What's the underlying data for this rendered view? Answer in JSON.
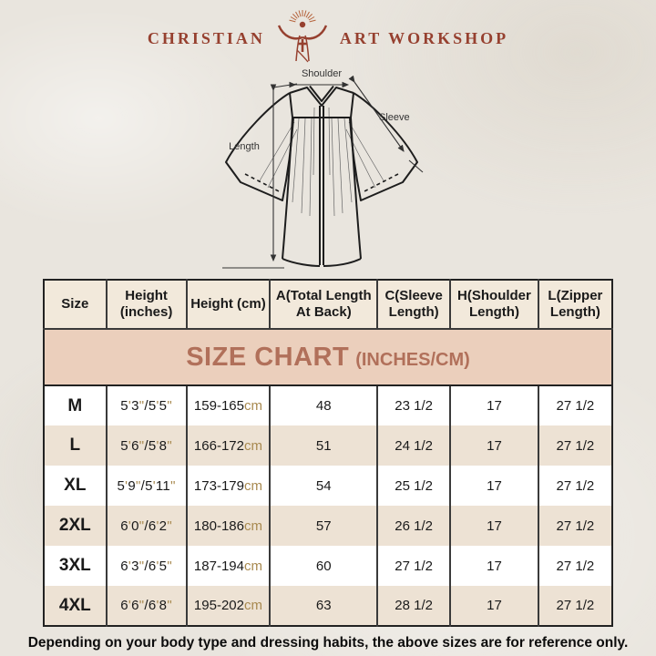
{
  "theme": {
    "page-bg": "#e9e5de",
    "maroon": "#96402f",
    "ray-color": "#b5633c",
    "banner-bg": "#ebcfbc",
    "banner-text": "#b1705a",
    "header-bg": "#f2e9db",
    "alt-row-bg": "#ede2d4",
    "accent": "#a8894f",
    "table-border": "#222222",
    "ink": "#1a1a1a"
  },
  "logo": {
    "left_text": "CHRISTIAN",
    "right_text": "ART WORKSHOP",
    "icon": "christ-with-rays-icon"
  },
  "diagram": {
    "labels": {
      "shoulder": "Shoulder",
      "sleeve": "Sleeve",
      "length": "Length"
    }
  },
  "size_chart": {
    "title": "SIZE CHART",
    "title_suffix": "(INCHES/CM)",
    "unit_cm": "cm",
    "columns": [
      "Size",
      "Height (inches)",
      "Height (cm)",
      "A(Total Length At Back)",
      "C(Sleeve Length)",
      "H(Shoulder Length)",
      "L(Zipper Length)"
    ],
    "rows": [
      {
        "size": "M",
        "height_in": "5'3\"/5'5\"",
        "height_cm": "159-165",
        "total_length": "48",
        "sleeve": "23 1/2",
        "shoulder": "17",
        "zipper": "27 1/2"
      },
      {
        "size": "L",
        "height_in": "5'6\"/5'8\"",
        "height_cm": "166-172",
        "total_length": "51",
        "sleeve": "24 1/2",
        "shoulder": "17",
        "zipper": "27 1/2"
      },
      {
        "size": "XL",
        "height_in": "5'9\"/5'11\"",
        "height_cm": "173-179",
        "total_length": "54",
        "sleeve": "25 1/2",
        "shoulder": "17",
        "zipper": "27 1/2"
      },
      {
        "size": "2XL",
        "height_in": "6'0\"/6'2\"",
        "height_cm": "180-186",
        "total_length": "57",
        "sleeve": "26 1/2",
        "shoulder": "17",
        "zipper": "27 1/2"
      },
      {
        "size": "3XL",
        "height_in": "6'3\"/6'5\"",
        "height_cm": "187-194",
        "total_length": "60",
        "sleeve": "27 1/2",
        "shoulder": "17",
        "zipper": "27 1/2"
      },
      {
        "size": "4XL",
        "height_in": "6'6\"/6'8\"",
        "height_cm": "195-202",
        "total_length": "63",
        "sleeve": "28 1/2",
        "shoulder": "17",
        "zipper": "27 1/2"
      }
    ]
  },
  "footer": {
    "note": "Depending on your body type and dressing habits, the above sizes are for reference only."
  }
}
